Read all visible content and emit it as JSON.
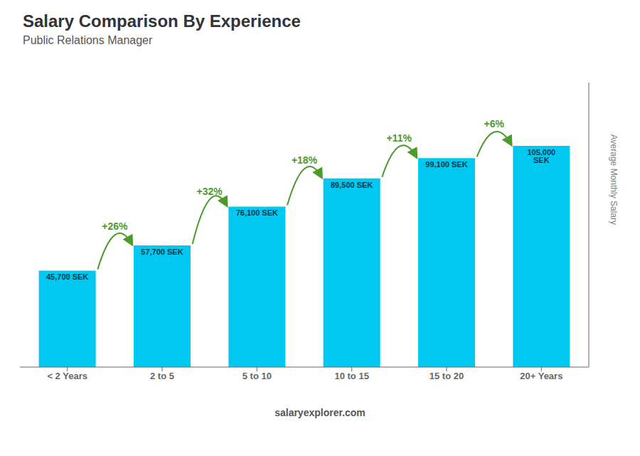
{
  "chart_data": {
    "type": "bar",
    "title": "Salary Comparison By Experience",
    "subtitle": "Public Relations Manager",
    "ylabel": "Average Monthly Salary",
    "categories": [
      "< 2 Years",
      "2 to 5",
      "5 to 10",
      "10 to 15",
      "15 to 20",
      "20+ Years"
    ],
    "values": [
      45700,
      57700,
      76100,
      89500,
      99100,
      105000
    ],
    "value_labels": [
      "45,700 SEK",
      "57,700 SEK",
      "76,100 SEK",
      "89,500 SEK",
      "99,100 SEK",
      "105,000 SEK"
    ],
    "data_labels": true,
    "annotations": [
      "+26%",
      "+32%",
      "+18%",
      "+11%",
      "+6%"
    ],
    "footer": "salaryexplorer.com",
    "color": "#00c8f0",
    "ylim": [
      0,
      135000
    ],
    "yticks": [],
    "tick_labels": "x",
    "grid": false
  }
}
